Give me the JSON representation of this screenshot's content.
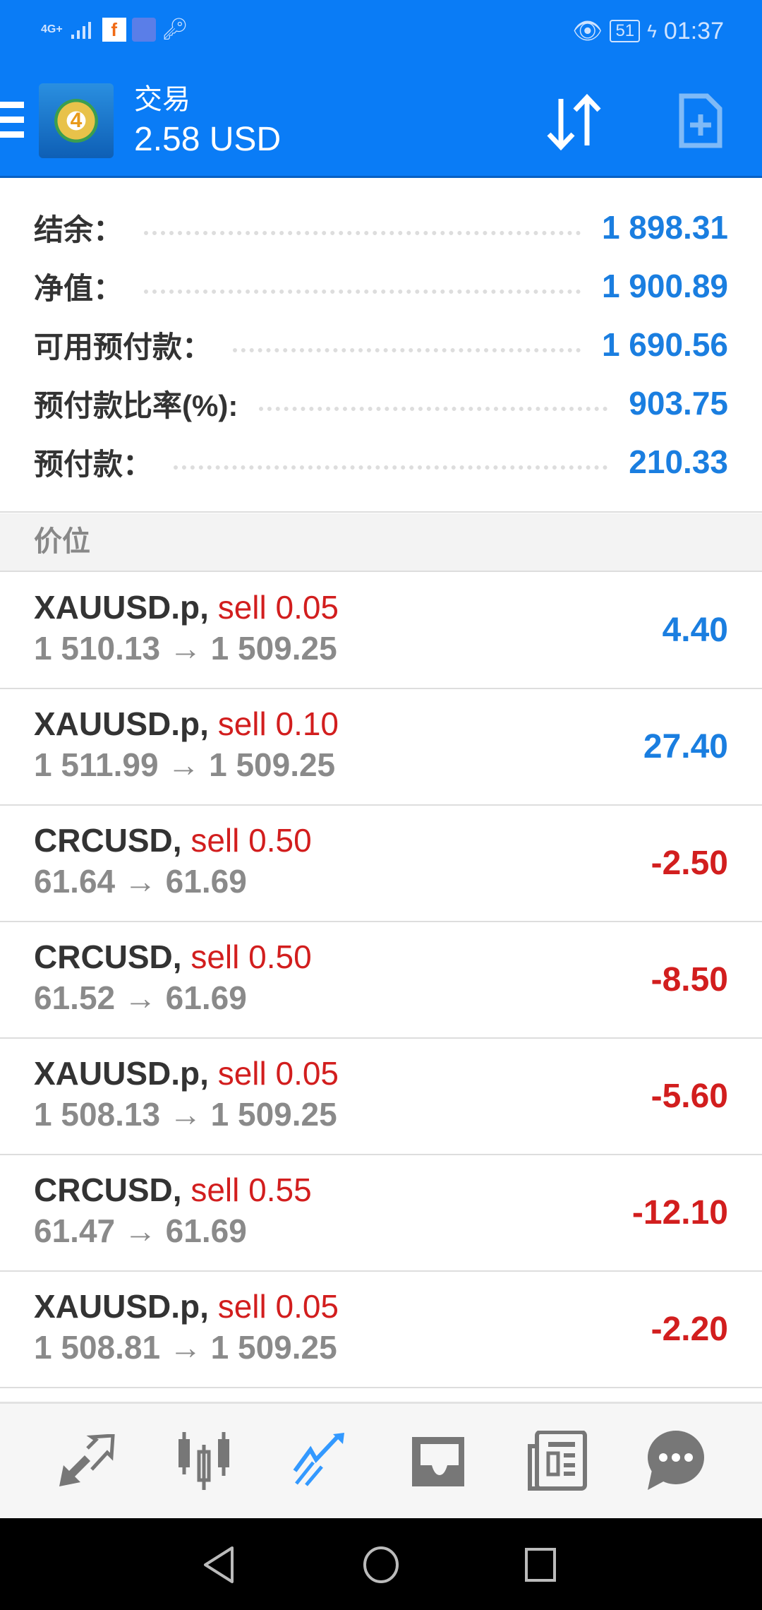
{
  "status_bar": {
    "network": "4G+",
    "battery": "51",
    "time": "01:37"
  },
  "toolbar": {
    "title": "交易",
    "balance": "2.58 USD"
  },
  "summary": [
    {
      "label": "结余：",
      "value": "1 898.31"
    },
    {
      "label": "净值：",
      "value": "1 900.89"
    },
    {
      "label": "可用预付款：",
      "value": "1 690.56"
    },
    {
      "label": "预付款比率(%):",
      "value": "903.75"
    },
    {
      "label": "预付款：",
      "value": "210.33"
    }
  ],
  "section_header": "价位",
  "trades": [
    {
      "symbol": "XAUUSD.p,",
      "action": "sell 0.05",
      "prices": "1 510.13 → 1 509.25",
      "profit": "4.40"
    },
    {
      "symbol": "XAUUSD.p,",
      "action": "sell 0.10",
      "prices": "1 511.99 → 1 509.25",
      "profit": "27.40"
    },
    {
      "symbol": "CRCUSD,",
      "action": "sell 0.50",
      "prices": "61.64 → 61.69",
      "profit": "-2.50"
    },
    {
      "symbol": "CRCUSD,",
      "action": "sell 0.50",
      "prices": "61.52 → 61.69",
      "profit": "-8.50"
    },
    {
      "symbol": "XAUUSD.p,",
      "action": "sell 0.05",
      "prices": "1 508.13 → 1 509.25",
      "profit": "-5.60"
    },
    {
      "symbol": "CRCUSD,",
      "action": "sell 0.55",
      "prices": "61.47 → 61.69",
      "profit": "-12.10"
    },
    {
      "symbol": "XAUUSD.p,",
      "action": "sell 0.05",
      "prices": "1 508.81 → 1 509.25",
      "profit": "-2.20"
    }
  ],
  "colors": {
    "accent": "#0a7cf6",
    "positive": "#1a7ee0",
    "negative": "#d21e1e"
  },
  "bottom_nav": {
    "active": "trade",
    "items": [
      "quotes-icon",
      "chart-icon",
      "trade-icon",
      "history-icon",
      "news-icon",
      "chat-icon"
    ]
  }
}
